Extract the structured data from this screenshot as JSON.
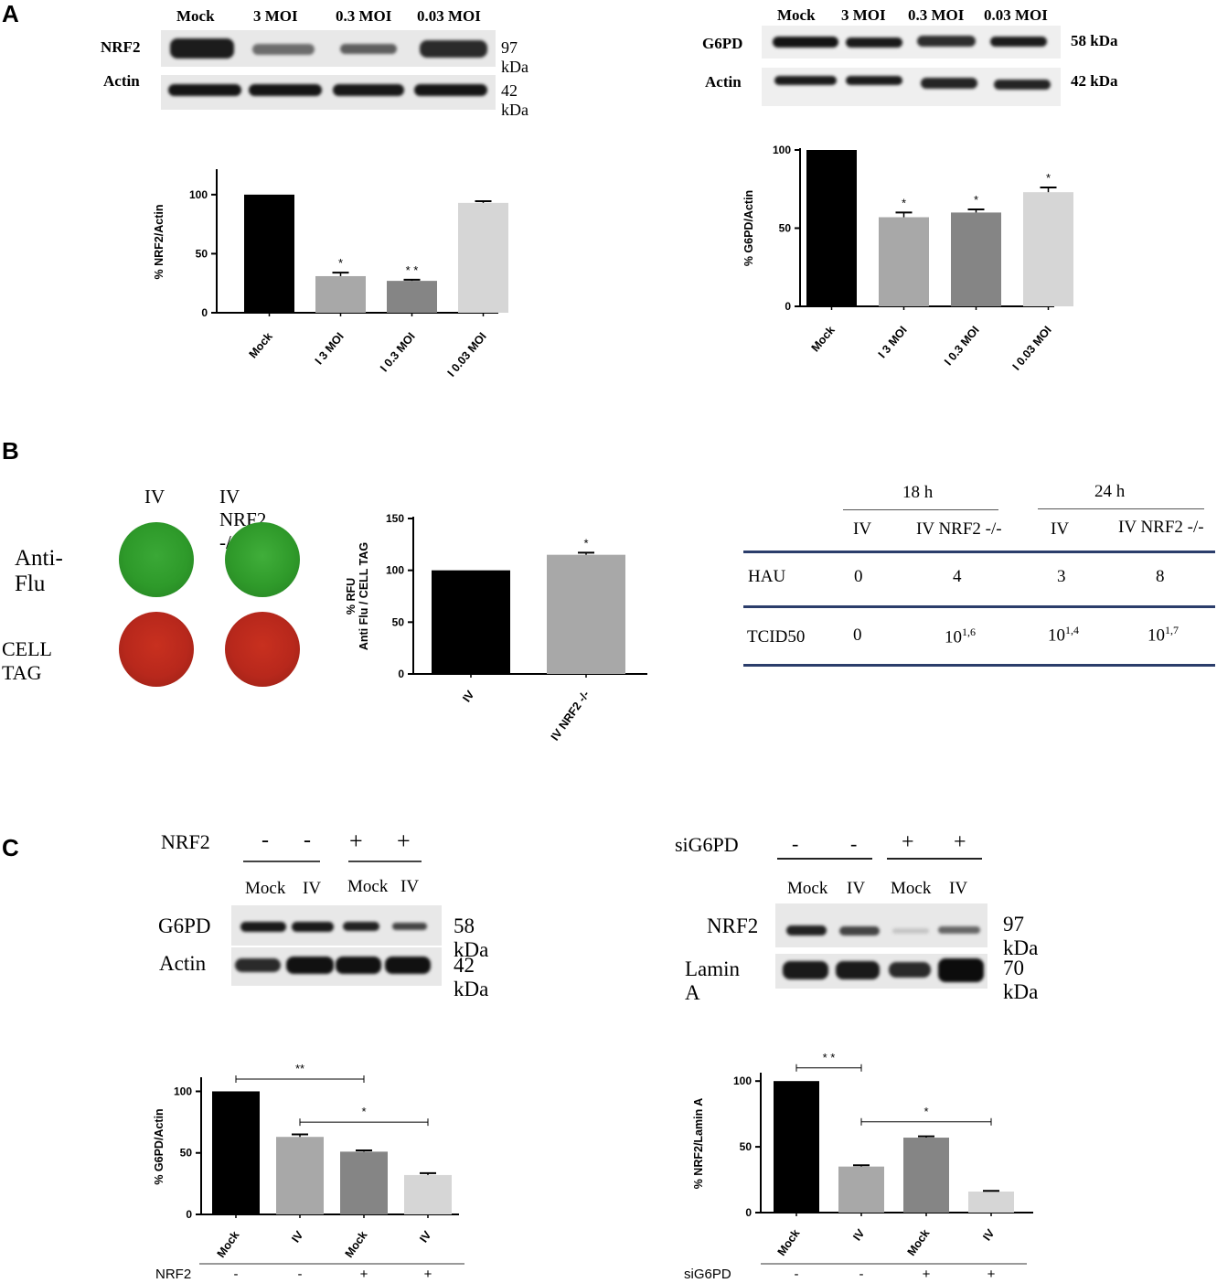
{
  "panels": {
    "A": "A",
    "B": "B",
    "C": "C"
  },
  "blotA1": {
    "lanes": [
      "Mock",
      "3 MOI",
      "0.3 MOI",
      "0.03 MOI"
    ],
    "rows": [
      "NRF2",
      "Actin"
    ],
    "sizes": [
      "97 kDa",
      "42 kDa"
    ]
  },
  "blotA2": {
    "lanes": [
      "Mock",
      "3 MOI",
      "0.3 MOI",
      "0.03 MOI"
    ],
    "rows": [
      "G6PD",
      "Actin"
    ],
    "sizes": [
      "58 kDa",
      "42 kDa"
    ]
  },
  "panelB": {
    "well_cols": [
      "IV",
      "IV NRF2 -/-"
    ],
    "well_rows": [
      "Anti-Flu",
      "CELL TAG"
    ],
    "colors": {
      "green": "#2f9a2a",
      "red": "#b8281c"
    }
  },
  "table": {
    "groups": [
      "18 h",
      "24 h"
    ],
    "headers": [
      "IV",
      "IV NRF2 -/-",
      "IV",
      "IV NRF2 -/-"
    ],
    "rows": [
      {
        "label": "HAU",
        "cells": [
          {
            "v": "0"
          },
          {
            "v": "4"
          },
          {
            "v": "3"
          },
          {
            "v": "8"
          }
        ]
      },
      {
        "label": "TCID50",
        "cells": [
          {
            "v": "0"
          },
          {
            "base": "10",
            "exp": "1,6"
          },
          {
            "base": "10",
            "exp": "1,4"
          },
          {
            "base": "10",
            "exp": "1,7"
          }
        ]
      }
    ],
    "rule_color": "#2b3d6b"
  },
  "blotC1": {
    "treat_label": "NRF2",
    "signs": [
      "-",
      "-",
      "+",
      "+"
    ],
    "lanes": [
      "Mock",
      "IV",
      "Mock",
      "IV"
    ],
    "rows": [
      "G6PD",
      "Actin"
    ],
    "sizes": [
      "58 kDa",
      "42 kDa"
    ]
  },
  "blotC2": {
    "treat_label": "siG6PD",
    "signs": [
      "-",
      "-",
      "+",
      "+"
    ],
    "lanes": [
      "Mock",
      "IV",
      "Mock",
      "IV"
    ],
    "rows": [
      "NRF2",
      "Lamin A"
    ],
    "sizes": [
      "97 kDa",
      "70 kDa"
    ]
  },
  "chart_data": [
    {
      "type": "bar",
      "ylabel": "% NRF2/Actin",
      "categories": [
        "Mock",
        "I 3 MOI",
        "I 0.3 MOI",
        "I 0.03 MOI"
      ],
      "values": [
        100,
        31,
        27,
        93
      ],
      "errors": [
        0,
        3,
        1,
        1.5
      ],
      "sig": [
        "",
        "*",
        "* *",
        ""
      ],
      "colors": [
        "#000000",
        "#a8a8a8",
        "#858585",
        "#d6d6d6"
      ],
      "ylim": [
        0,
        120
      ],
      "yticks": [
        0,
        50,
        100
      ]
    },
    {
      "type": "bar",
      "ylabel": "% G6PD/Actin",
      "categories": [
        "Mock",
        "I 3 MOI",
        "I 0.3 MOI",
        "I 0.03 MOI"
      ],
      "values": [
        100,
        57,
        60,
        73
      ],
      "errors": [
        0,
        3,
        2,
        3
      ],
      "sig": [
        "",
        "*",
        "*",
        "*"
      ],
      "colors": [
        "#000000",
        "#a8a8a8",
        "#858585",
        "#d6d6d6"
      ],
      "ylim": [
        0,
        100
      ],
      "yticks": [
        0,
        50,
        100
      ]
    },
    {
      "type": "bar",
      "ylabel": "% RFU\nAnti Flu / CELL TAG",
      "categories": [
        "IV",
        "IV NRF2 -/-"
      ],
      "values": [
        100,
        115
      ],
      "errors": [
        0,
        2
      ],
      "sig": [
        "",
        "*"
      ],
      "colors": [
        "#000000",
        "#a8a8a8"
      ],
      "ylim": [
        0,
        150
      ],
      "yticks": [
        0,
        50,
        100,
        150
      ]
    },
    {
      "type": "bar",
      "ylabel": "% G6PD/Actin",
      "categories": [
        "Mock",
        "IV",
        "Mock",
        "IV"
      ],
      "values": [
        100,
        63,
        51,
        32
      ],
      "errors": [
        0,
        2,
        1,
        1.5
      ],
      "colors": [
        "#000000",
        "#a8a8a8",
        "#858585",
        "#d6d6d6"
      ],
      "ylim": [
        0,
        110
      ],
      "yticks": [
        0,
        50,
        100
      ],
      "brackets": [
        {
          "from": 0,
          "to": 2,
          "label": "**"
        },
        {
          "from": 1,
          "to": 3,
          "label": "*"
        }
      ],
      "treatment": {
        "label": "NRF2",
        "signs": [
          "-",
          "-",
          "+",
          "+"
        ]
      }
    },
    {
      "type": "bar",
      "ylabel": "% NRF2/Lamin A",
      "categories": [
        "Mock",
        "IV",
        "Mock",
        "IV"
      ],
      "values": [
        100,
        35,
        57,
        16
      ],
      "errors": [
        0,
        1,
        1,
        0.5
      ],
      "colors": [
        "#000000",
        "#a8a8a8",
        "#858585",
        "#d6d6d6"
      ],
      "ylim": [
        0,
        105
      ],
      "yticks": [
        0,
        50,
        100
      ],
      "brackets": [
        {
          "from": 0,
          "to": 1,
          "label": "* *"
        },
        {
          "from": 1,
          "to": 3,
          "label": "*"
        }
      ],
      "treatment": {
        "label": "siG6PD",
        "signs": [
          "-",
          "-",
          "+",
          "+"
        ]
      }
    }
  ]
}
